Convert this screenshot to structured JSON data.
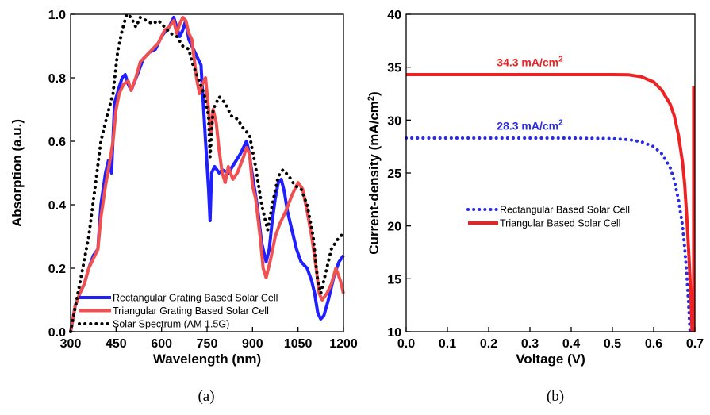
{
  "chart_data": [
    {
      "type": "line",
      "panel_label": "(a)",
      "xlabel": "Wavelength (nm)",
      "ylabel": "Absorption (a.u.)",
      "xlim": [
        300,
        1200
      ],
      "ylim": [
        0,
        1.0
      ],
      "xticks": [
        "300",
        "450",
        "600",
        "750",
        "900",
        "1050",
        "1200"
      ],
      "yticks": [
        "0.0",
        "0.2",
        "0.4",
        "0.6",
        "0.8",
        "1.0"
      ],
      "legend_position": "bottom-left",
      "series": [
        {
          "name": "Rectangular Grating Based Solar Cell",
          "color": "#1f1fff",
          "style": "solid",
          "points": [
            [
              300,
              0.0
            ],
            [
              315,
              0.08
            ],
            [
              330,
              0.12
            ],
            [
              345,
              0.15
            ],
            [
              360,
              0.2
            ],
            [
              375,
              0.24
            ],
            [
              390,
              0.26
            ],
            [
              400,
              0.4
            ],
            [
              415,
              0.5
            ],
            [
              425,
              0.54
            ],
            [
              435,
              0.5
            ],
            [
              445,
              0.72
            ],
            [
              460,
              0.77
            ],
            [
              470,
              0.8
            ],
            [
              480,
              0.81
            ],
            [
              490,
              0.78
            ],
            [
              500,
              0.76
            ],
            [
              520,
              0.81
            ],
            [
              540,
              0.86
            ],
            [
              560,
              0.88
            ],
            [
              580,
              0.89
            ],
            [
              600,
              0.93
            ],
            [
              615,
              0.95
            ],
            [
              625,
              0.96
            ],
            [
              640,
              0.99
            ],
            [
              650,
              0.96
            ],
            [
              660,
              0.93
            ],
            [
              670,
              0.95
            ],
            [
              680,
              0.98
            ],
            [
              690,
              0.92
            ],
            [
              700,
              0.9
            ],
            [
              710,
              0.88
            ],
            [
              720,
              0.86
            ],
            [
              730,
              0.84
            ],
            [
              745,
              0.6
            ],
            [
              755,
              0.45
            ],
            [
              760,
              0.35
            ],
            [
              765,
              0.5
            ],
            [
              775,
              0.52
            ],
            [
              790,
              0.5
            ],
            [
              800,
              0.51
            ],
            [
              820,
              0.5
            ],
            [
              840,
              0.53
            ],
            [
              860,
              0.56
            ],
            [
              880,
              0.6
            ],
            [
              890,
              0.56
            ],
            [
              895,
              0.52
            ],
            [
              905,
              0.46
            ],
            [
              915,
              0.4
            ],
            [
              930,
              0.28
            ],
            [
              945,
              0.22
            ],
            [
              955,
              0.26
            ],
            [
              965,
              0.35
            ],
            [
              975,
              0.42
            ],
            [
              985,
              0.47
            ],
            [
              995,
              0.48
            ],
            [
              1005,
              0.44
            ],
            [
              1015,
              0.38
            ],
            [
              1030,
              0.32
            ],
            [
              1045,
              0.26
            ],
            [
              1060,
              0.22
            ],
            [
              1080,
              0.2
            ],
            [
              1095,
              0.16
            ],
            [
              1105,
              0.12
            ],
            [
              1115,
              0.06
            ],
            [
              1125,
              0.04
            ],
            [
              1135,
              0.05
            ],
            [
              1150,
              0.1
            ],
            [
              1170,
              0.18
            ],
            [
              1185,
              0.22
            ],
            [
              1200,
              0.24
            ]
          ]
        },
        {
          "name": "Triangular Grating Based Solar Cell",
          "color": "#f05050",
          "style": "solid",
          "points": [
            [
              300,
              0.0
            ],
            [
              315,
              0.08
            ],
            [
              330,
              0.12
            ],
            [
              345,
              0.15
            ],
            [
              360,
              0.2
            ],
            [
              375,
              0.23
            ],
            [
              390,
              0.26
            ],
            [
              400,
              0.36
            ],
            [
              415,
              0.46
            ],
            [
              430,
              0.54
            ],
            [
              440,
              0.6
            ],
            [
              450,
              0.7
            ],
            [
              460,
              0.75
            ],
            [
              475,
              0.78
            ],
            [
              490,
              0.79
            ],
            [
              500,
              0.76
            ],
            [
              515,
              0.8
            ],
            [
              530,
              0.85
            ],
            [
              550,
              0.87
            ],
            [
              570,
              0.89
            ],
            [
              590,
              0.91
            ],
            [
              610,
              0.95
            ],
            [
              625,
              0.96
            ],
            [
              640,
              0.98
            ],
            [
              650,
              0.94
            ],
            [
              660,
              0.97
            ],
            [
              670,
              0.99
            ],
            [
              680,
              0.98
            ],
            [
              690,
              0.94
            ],
            [
              700,
              0.92
            ],
            [
              715,
              0.8
            ],
            [
              725,
              0.75
            ],
            [
              735,
              0.78
            ],
            [
              745,
              0.8
            ],
            [
              755,
              0.7
            ],
            [
              762,
              0.62
            ],
            [
              770,
              0.7
            ],
            [
              780,
              0.66
            ],
            [
              790,
              0.57
            ],
            [
              800,
              0.5
            ],
            [
              810,
              0.47
            ],
            [
              820,
              0.52
            ],
            [
              835,
              0.48
            ],
            [
              850,
              0.5
            ],
            [
              870,
              0.55
            ],
            [
              880,
              0.58
            ],
            [
              890,
              0.56
            ],
            [
              900,
              0.46
            ],
            [
              910,
              0.42
            ],
            [
              925,
              0.3
            ],
            [
              935,
              0.2
            ],
            [
              945,
              0.17
            ],
            [
              960,
              0.23
            ],
            [
              975,
              0.3
            ],
            [
              990,
              0.34
            ],
            [
              1010,
              0.38
            ],
            [
              1030,
              0.43
            ],
            [
              1050,
              0.47
            ],
            [
              1065,
              0.45
            ],
            [
              1080,
              0.38
            ],
            [
              1095,
              0.3
            ],
            [
              1110,
              0.2
            ],
            [
              1120,
              0.12
            ],
            [
              1130,
              0.1
            ],
            [
              1145,
              0.12
            ],
            [
              1160,
              0.15
            ],
            [
              1175,
              0.2
            ],
            [
              1190,
              0.16
            ],
            [
              1200,
              0.12
            ]
          ]
        },
        {
          "name": "Solar Spectrum (AM 1.5G)",
          "color": "#000000",
          "style": "dotted",
          "points": [
            [
              300,
              0.0
            ],
            [
              320,
              0.1
            ],
            [
              340,
              0.2
            ],
            [
              360,
              0.3
            ],
            [
              380,
              0.45
            ],
            [
              400,
              0.6
            ],
            [
              420,
              0.68
            ],
            [
              440,
              0.75
            ],
            [
              455,
              0.88
            ],
            [
              470,
              0.95
            ],
            [
              485,
              1.0
            ],
            [
              500,
              0.99
            ],
            [
              515,
              0.96
            ],
            [
              530,
              0.99
            ],
            [
              550,
              0.98
            ],
            [
              570,
              0.97
            ],
            [
              590,
              0.98
            ],
            [
              610,
              0.96
            ],
            [
              630,
              0.94
            ],
            [
              650,
              0.93
            ],
            [
              670,
              0.9
            ],
            [
              690,
              0.89
            ],
            [
              700,
              0.85
            ],
            [
              720,
              0.8
            ],
            [
              740,
              0.75
            ],
            [
              755,
              0.68
            ],
            [
              760,
              0.55
            ],
            [
              770,
              0.7
            ],
            [
              790,
              0.74
            ],
            [
              810,
              0.72
            ],
            [
              830,
              0.68
            ],
            [
              850,
              0.67
            ],
            [
              870,
              0.64
            ],
            [
              890,
              0.62
            ],
            [
              910,
              0.52
            ],
            [
              930,
              0.4
            ],
            [
              950,
              0.32
            ],
            [
              965,
              0.4
            ],
            [
              985,
              0.49
            ],
            [
              1000,
              0.51
            ],
            [
              1020,
              0.49
            ],
            [
              1040,
              0.46
            ],
            [
              1060,
              0.45
            ],
            [
              1080,
              0.4
            ],
            [
              1100,
              0.3
            ],
            [
              1115,
              0.16
            ],
            [
              1125,
              0.12
            ],
            [
              1140,
              0.18
            ],
            [
              1160,
              0.26
            ],
            [
              1180,
              0.29
            ],
            [
              1200,
              0.31
            ]
          ]
        }
      ]
    },
    {
      "type": "line",
      "panel_label": "(b)",
      "xlabel": "Voltage (V)",
      "ylabel": "Current-density (mA/cm2)",
      "xlim": [
        0,
        0.7
      ],
      "ylim": [
        10,
        40
      ],
      "xticks": [
        "0.0",
        "0.1",
        "0.2",
        "0.3",
        "0.4",
        "0.5",
        "0.6",
        "0.7"
      ],
      "yticks": [
        "10",
        "15",
        "20",
        "25",
        "30",
        "35",
        "40"
      ],
      "legend_position": "center",
      "annotations": [
        {
          "text": "34.3 mA/cm",
          "sup": "2",
          "color": "#ee2222",
          "x": 0.3,
          "y": 35.1
        },
        {
          "text": "28.3 mA/cm",
          "sup": "2",
          "color": "#2a2ae0",
          "x": 0.3,
          "y": 29.1
        }
      ],
      "series": [
        {
          "name": "Rectangular Based Solar Cell",
          "color": "#2a2ae0",
          "style": "dotted",
          "points": [
            [
              0.0,
              28.3
            ],
            [
              0.1,
              28.3
            ],
            [
              0.2,
              28.3
            ],
            [
              0.3,
              28.3
            ],
            [
              0.4,
              28.3
            ],
            [
              0.45,
              28.28
            ],
            [
              0.5,
              28.25
            ],
            [
              0.54,
              28.15
            ],
            [
              0.57,
              27.95
            ],
            [
              0.6,
              27.5
            ],
            [
              0.62,
              26.8
            ],
            [
              0.64,
              25.5
            ],
            [
              0.65,
              24.3
            ],
            [
              0.66,
              22.5
            ],
            [
              0.67,
              20.0
            ],
            [
              0.675,
              18.0
            ],
            [
              0.68,
              15.5
            ],
            [
              0.684,
              13.0
            ],
            [
              0.688,
              10.0
            ]
          ]
        },
        {
          "name": "Triangular Based Solar Cell",
          "color": "#ee2222",
          "style": "solid",
          "points": [
            [
              0.0,
              34.3
            ],
            [
              0.1,
              34.3
            ],
            [
              0.2,
              34.3
            ],
            [
              0.3,
              34.3
            ],
            [
              0.4,
              34.3
            ],
            [
              0.5,
              34.3
            ],
            [
              0.54,
              34.28
            ],
            [
              0.57,
              34.1
            ],
            [
              0.6,
              33.6
            ],
            [
              0.62,
              32.8
            ],
            [
              0.64,
              31.5
            ],
            [
              0.65,
              30.4
            ],
            [
              0.66,
              28.6
            ],
            [
              0.67,
              26.0
            ],
            [
              0.675,
              24.0
            ],
            [
              0.68,
              21.0
            ],
            [
              0.685,
              17.5
            ],
            [
              0.69,
              13.5
            ],
            [
              0.693,
              10.0
            ]
          ]
        },
        {
          "name": "",
          "color": "#ee2222",
          "style": "solid",
          "points": [
            [
              0.697,
              33.2
            ],
            [
              0.697,
              10.0
            ]
          ]
        }
      ]
    }
  ]
}
